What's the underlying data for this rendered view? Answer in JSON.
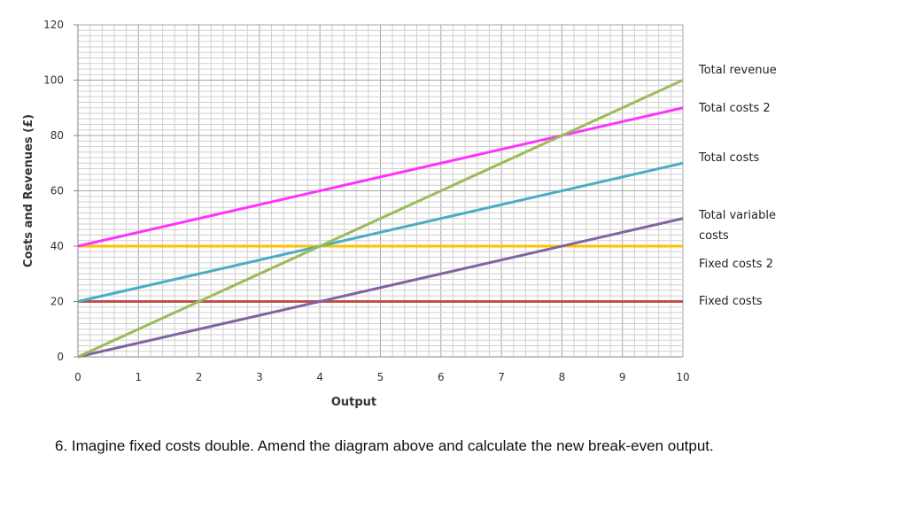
{
  "chart_data": {
    "type": "line",
    "xlabel": "Output",
    "ylabel": "Costs and Revenues (£)",
    "xlim": [
      0,
      10
    ],
    "ylim": [
      0,
      120
    ],
    "x_ticks": [
      0,
      1,
      2,
      3,
      4,
      5,
      6,
      7,
      8,
      9,
      10
    ],
    "y_ticks": [
      0,
      20,
      40,
      60,
      80,
      100,
      120
    ],
    "grid": true,
    "legend_placement": "right",
    "series": [
      {
        "name": "Total revenue",
        "color": "#9bbb59",
        "x": [
          0,
          10
        ],
        "y": [
          0,
          100
        ]
      },
      {
        "name": "Total costs 2",
        "color": "#ff33ff",
        "x": [
          0,
          10
        ],
        "y": [
          40,
          90
        ]
      },
      {
        "name": "Total costs",
        "color": "#4bacc6",
        "x": [
          0,
          10
        ],
        "y": [
          20,
          70
        ]
      },
      {
        "name": "Total variable costs",
        "color": "#8064a2",
        "x": [
          0,
          10
        ],
        "y": [
          0,
          50
        ]
      },
      {
        "name": "Fixed costs 2",
        "color": "#ffc000",
        "x": [
          0,
          10
        ],
        "y": [
          40,
          40
        ]
      },
      {
        "name": "Fixed costs",
        "color": "#c0504d",
        "x": [
          0,
          10
        ],
        "y": [
          20,
          20
        ]
      }
    ]
  },
  "question": "6. Imagine fixed costs double. Amend the diagram above and calculate the new break-even output."
}
